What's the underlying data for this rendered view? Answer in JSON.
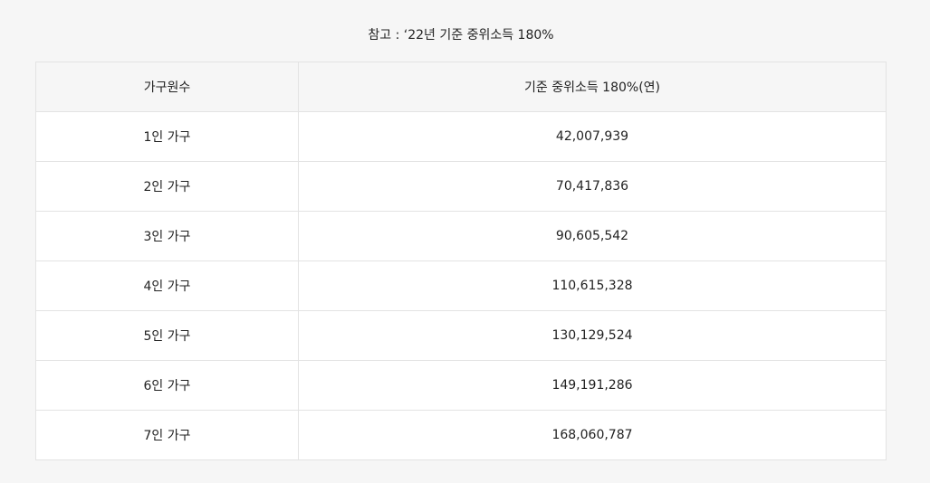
{
  "caption": "참고 : ‘22년 기준 중위소득 180%",
  "table": {
    "headers": [
      "가구원수",
      "기준 중위소득 180%(연)"
    ],
    "rows": [
      [
        "1인 가구",
        "42,007,939"
      ],
      [
        "2인 가구",
        "70,417,836"
      ],
      [
        "3인 가구",
        "90,605,542"
      ],
      [
        "4인 가구",
        "110,615,328"
      ],
      [
        "5인 가구",
        "130,129,524"
      ],
      [
        "6인 가구",
        "149,191,286"
      ],
      [
        "7인 가구",
        "168,060,787"
      ]
    ]
  }
}
